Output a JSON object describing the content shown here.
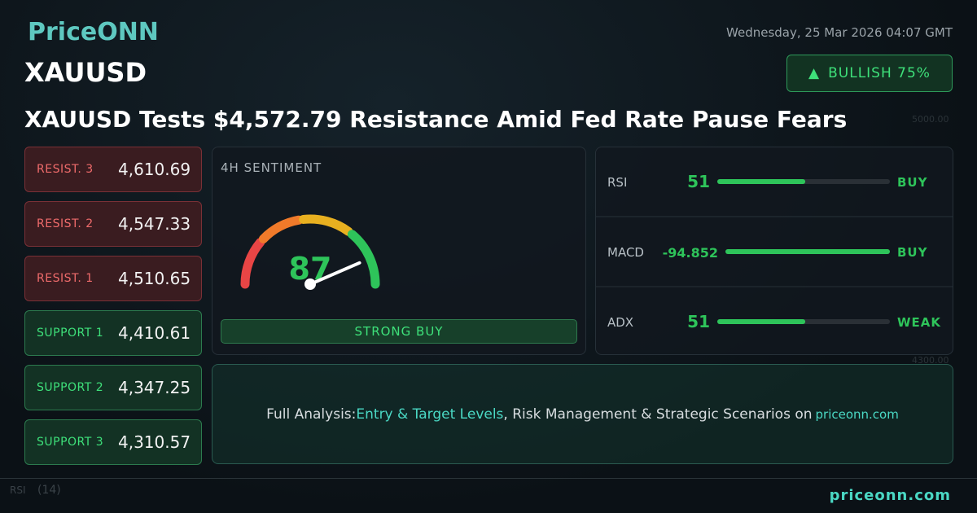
{
  "header": {
    "brand": "PriceONN",
    "symbol": "XAUUSD",
    "datetime": "Wednesday, 25 Mar 2026 04:07 GMT",
    "badge": "BULLISH 75%",
    "headline": "XAUUSD Tests $4,572.79 Resistance Amid Fed Rate Pause Fears"
  },
  "levels": [
    {
      "label": "RESIST. 3",
      "value": "4,610.69",
      "kind": "resist"
    },
    {
      "label": "RESIST. 2",
      "value": "4,547.33",
      "kind": "resist"
    },
    {
      "label": "RESIST. 1",
      "value": "4,510.65",
      "kind": "resist"
    },
    {
      "label": "SUPPORT 1",
      "value": "4,410.61",
      "kind": "support"
    },
    {
      "label": "SUPPORT 2",
      "value": "4,347.25",
      "kind": "support"
    },
    {
      "label": "SUPPORT 3",
      "value": "4,310.57",
      "kind": "support"
    }
  ],
  "sentiment": {
    "title": "4H SENTIMENT",
    "score": 87,
    "verdict": "STRONG BUY"
  },
  "indicators": [
    {
      "name": "RSI",
      "value": 51,
      "signal": "BUY"
    },
    {
      "name": "MACD",
      "value": -94.852,
      "signal": "BUY"
    },
    {
      "name": "ADX",
      "value": 51,
      "signal": "WEAK"
    }
  ],
  "banner": {
    "parts": [
      "Full Analysis: ",
      "Entry & Target Levels",
      ", Risk Management & Strategic Scenarios on ",
      "priceonn.com"
    ]
  },
  "background": {
    "price_labels": [
      "5000.00",
      "4300.00"
    ],
    "indicator": "RSI",
    "period": "(14)"
  },
  "footer": {
    "site": "priceonn.com"
  }
}
